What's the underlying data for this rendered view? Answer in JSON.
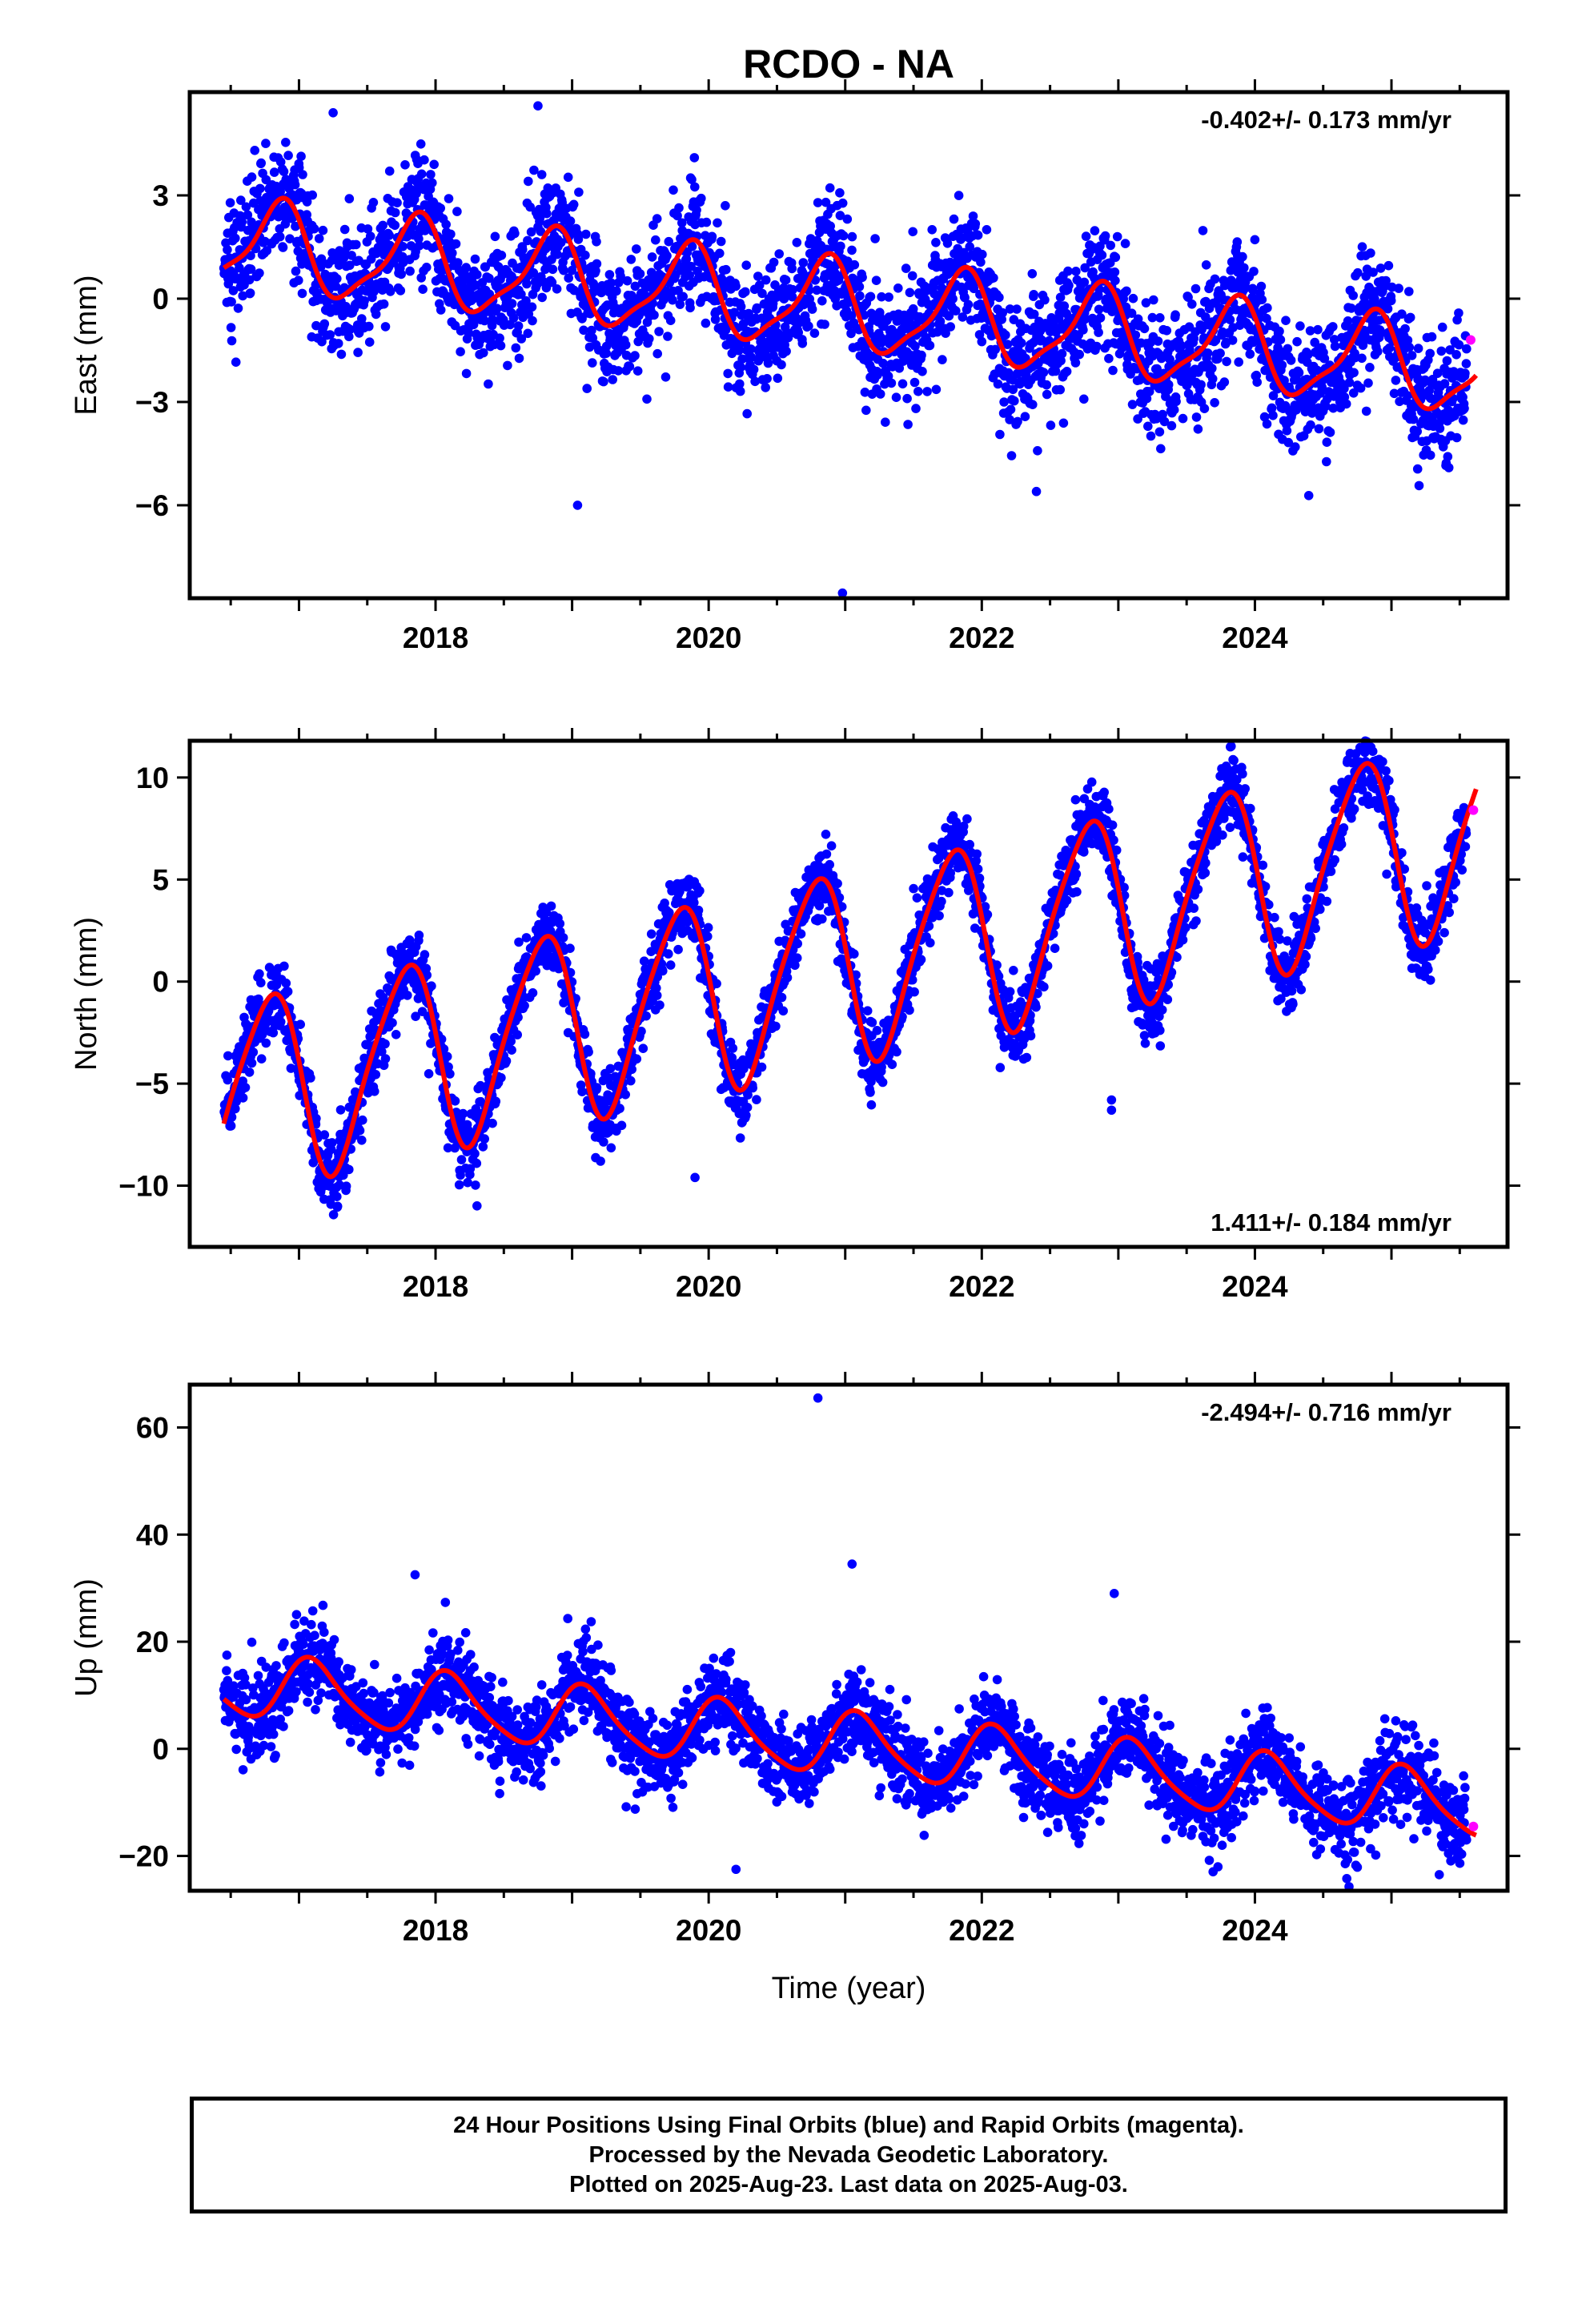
{
  "title": "RCDO - NA",
  "xlabel": "Time (year)",
  "footer": {
    "line1": "24 Hour Positions Using Final Orbits (blue) and Rapid Orbits (magenta).",
    "line2": "Processed by the Nevada Geodetic Laboratory.",
    "line3": "Plotted on 2025-Aug-23. Last data on 2025-Aug-03."
  },
  "colors": {
    "final": "#0000ff",
    "rapid": "#ff00ff",
    "model": "#ff0000",
    "frame": "#000000"
  },
  "chart_data": [
    {
      "type": "scatter",
      "panel": "east",
      "ylabel": "East (mm)",
      "rate_label": "-0.402+/- 0.173 mm/yr",
      "rate_position": "top-right",
      "xlim": [
        2016.2,
        2025.85
      ],
      "ylim": [
        -8.7,
        6.0
      ],
      "xticks": [
        2018,
        2020,
        2022,
        2024
      ],
      "yticks": [
        -6,
        -3,
        0,
        3
      ],
      "grid": false,
      "model": {
        "offset": 1.55,
        "slope": -0.402,
        "t0": 2016.5,
        "amp1": 1.25,
        "phase1": 0.6,
        "amp2": 0.35,
        "phase2": 0.8
      },
      "scatter_sd": 0.9,
      "series": [
        {
          "name": "Final Orbits",
          "color": "blue",
          "start": 2016.45,
          "end": 2025.55
        },
        {
          "name": "Rapid Orbits",
          "color": "magenta",
          "x": [
            2025.58
          ],
          "y": [
            -1.2
          ]
        }
      ],
      "outliers": [
        [
          2019.04,
          -6.0
        ],
        [
          2020.98,
          -8.55
        ],
        [
          2018.75,
          5.6
        ],
        [
          2017.25,
          5.4
        ],
        [
          2022.4,
          -5.6
        ]
      ]
    },
    {
      "type": "scatter",
      "panel": "north",
      "ylabel": "North (mm)",
      "rate_label": "1.411+/- 0.184 mm/yr",
      "rate_position": "bottom-right",
      "xlim": [
        2016.2,
        2025.85
      ],
      "ylim": [
        -13.0,
        11.8
      ],
      "xticks": [
        2018,
        2020,
        2022,
        2024
      ],
      "yticks": [
        -10,
        -5,
        0,
        5,
        10
      ],
      "grid": false,
      "model": {
        "offset": -5.6,
        "slope": 1.411,
        "t0": 2016.5,
        "amp1": 4.6,
        "phase1": 0.52,
        "amp2": 0.7,
        "phase2": 0.3
      },
      "scatter_sd": 0.9,
      "series": [
        {
          "name": "Final Orbits",
          "color": "blue",
          "start": 2016.45,
          "end": 2025.55
        },
        {
          "name": "Rapid Orbits",
          "color": "magenta",
          "x": [
            2025.6
          ],
          "y": [
            8.4
          ]
        }
      ],
      "outliers": [
        [
          2022.95,
          -6.3
        ],
        [
          2019.9,
          -9.6
        ],
        [
          2022.95,
          -5.8
        ]
      ]
    },
    {
      "type": "scatter",
      "panel": "up",
      "ylabel": "Up (mm)",
      "rate_label": "-2.494+/- 0.716 mm/yr",
      "rate_position": "top-right",
      "xlim": [
        2016.2,
        2025.85
      ],
      "ylim": [
        -26.5,
        68.0
      ],
      "xticks": [
        2018,
        2020,
        2022,
        2024
      ],
      "yticks": [
        -20,
        0,
        20,
        40,
        60
      ],
      "grid": false,
      "model": {
        "offset": 12.0,
        "slope": -2.494,
        "t0": 2016.5,
        "amp1": 5.8,
        "phase1": 0.85,
        "amp2": 1.0,
        "phase2": 0.4
      },
      "scatter_sd": 4.0,
      "series": [
        {
          "name": "Final Orbits",
          "color": "blue",
          "start": 2016.45,
          "end": 2025.55
        },
        {
          "name": "Rapid Orbits",
          "color": "magenta",
          "x": [
            2025.6
          ],
          "y": [
            -14.5
          ]
        }
      ],
      "outliers": [
        [
          2020.8,
          65.5
        ],
        [
          2021.05,
          34.5
        ],
        [
          2022.97,
          29.0
        ],
        [
          2017.85,
          32.5
        ],
        [
          2020.2,
          -22.5
        ],
        [
          2025.35,
          -23.5
        ]
      ]
    }
  ]
}
